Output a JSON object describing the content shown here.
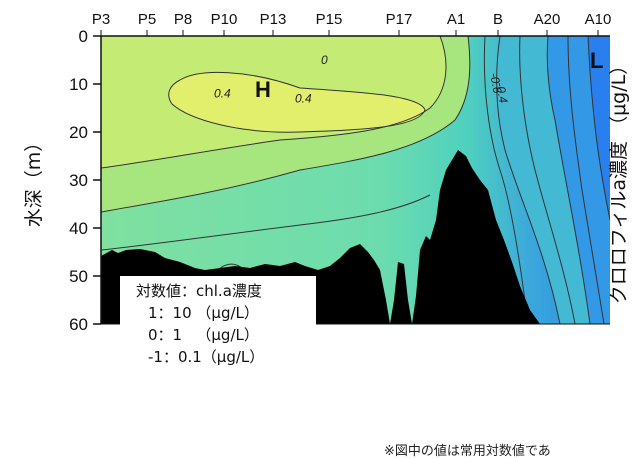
{
  "chart_data": {
    "type": "heatmap",
    "subtype": "depth-section contour",
    "x_stations": [
      "P3",
      "P5",
      "P8",
      "P10",
      "P13",
      "P15",
      "P17",
      "A1",
      "B",
      "A20",
      "A10"
    ],
    "ylabel": "水深（m）",
    "colorbar_label": "クロロフィルa濃度 （μg/L）",
    "ylim": [
      0,
      60
    ],
    "y_inverted": true,
    "y_ticks": [
      0,
      10,
      20,
      30,
      40,
      50,
      60
    ],
    "contour_labels": [
      {
        "text": "0",
        "depth_m": 5,
        "near": "P15"
      },
      {
        "text": "0.4",
        "depth_m": 12,
        "near": "P10"
      },
      {
        "text": "0.4",
        "depth_m": 13,
        "near": "P13"
      },
      {
        "text": "-0.6",
        "depth_m": 7,
        "near": "A1"
      },
      {
        "text": "-0.4",
        "depth_m": 9,
        "near": "A1"
      }
    ],
    "markers": [
      {
        "text": "H",
        "depth_m": 11,
        "near": "P13"
      },
      {
        "text": "L",
        "depth_m": 5,
        "near": "A10"
      }
    ],
    "colors": {
      "high": "#e2ef6c",
      "mid": "#5fd8a5",
      "low": "#2f8ce9",
      "seafloor": "#000000"
    },
    "legend": {
      "title": "対数値：chl.a濃度",
      "rows": [
        "1：10 （μg/L）",
        "0：1   （μg/L）",
        "-1：0.1（μg/L）"
      ]
    },
    "footnote": "※図中の値は常用対数値であ"
  }
}
